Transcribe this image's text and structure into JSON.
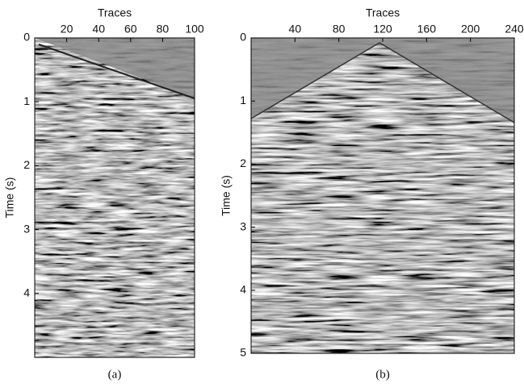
{
  "chart_data": [
    {
      "type": "seismic",
      "title": "Traces",
      "ylabel": "Time (s)",
      "caption": "(a)",
      "xlim": [
        0,
        100
      ],
      "xticks": [
        20,
        40,
        60,
        80,
        100
      ],
      "ylim": [
        0,
        5
      ],
      "yticks": [
        0,
        1,
        2,
        3,
        4
      ]
    },
    {
      "type": "seismic",
      "title": "Traces",
      "ylabel": "Time (s)",
      "caption": "(b)",
      "xlim": [
        0,
        240
      ],
      "xticks": [
        40,
        80,
        120,
        160,
        200,
        240
      ],
      "ylim": [
        0,
        5
      ],
      "yticks": [
        0,
        1,
        2,
        3,
        4,
        5
      ]
    }
  ]
}
